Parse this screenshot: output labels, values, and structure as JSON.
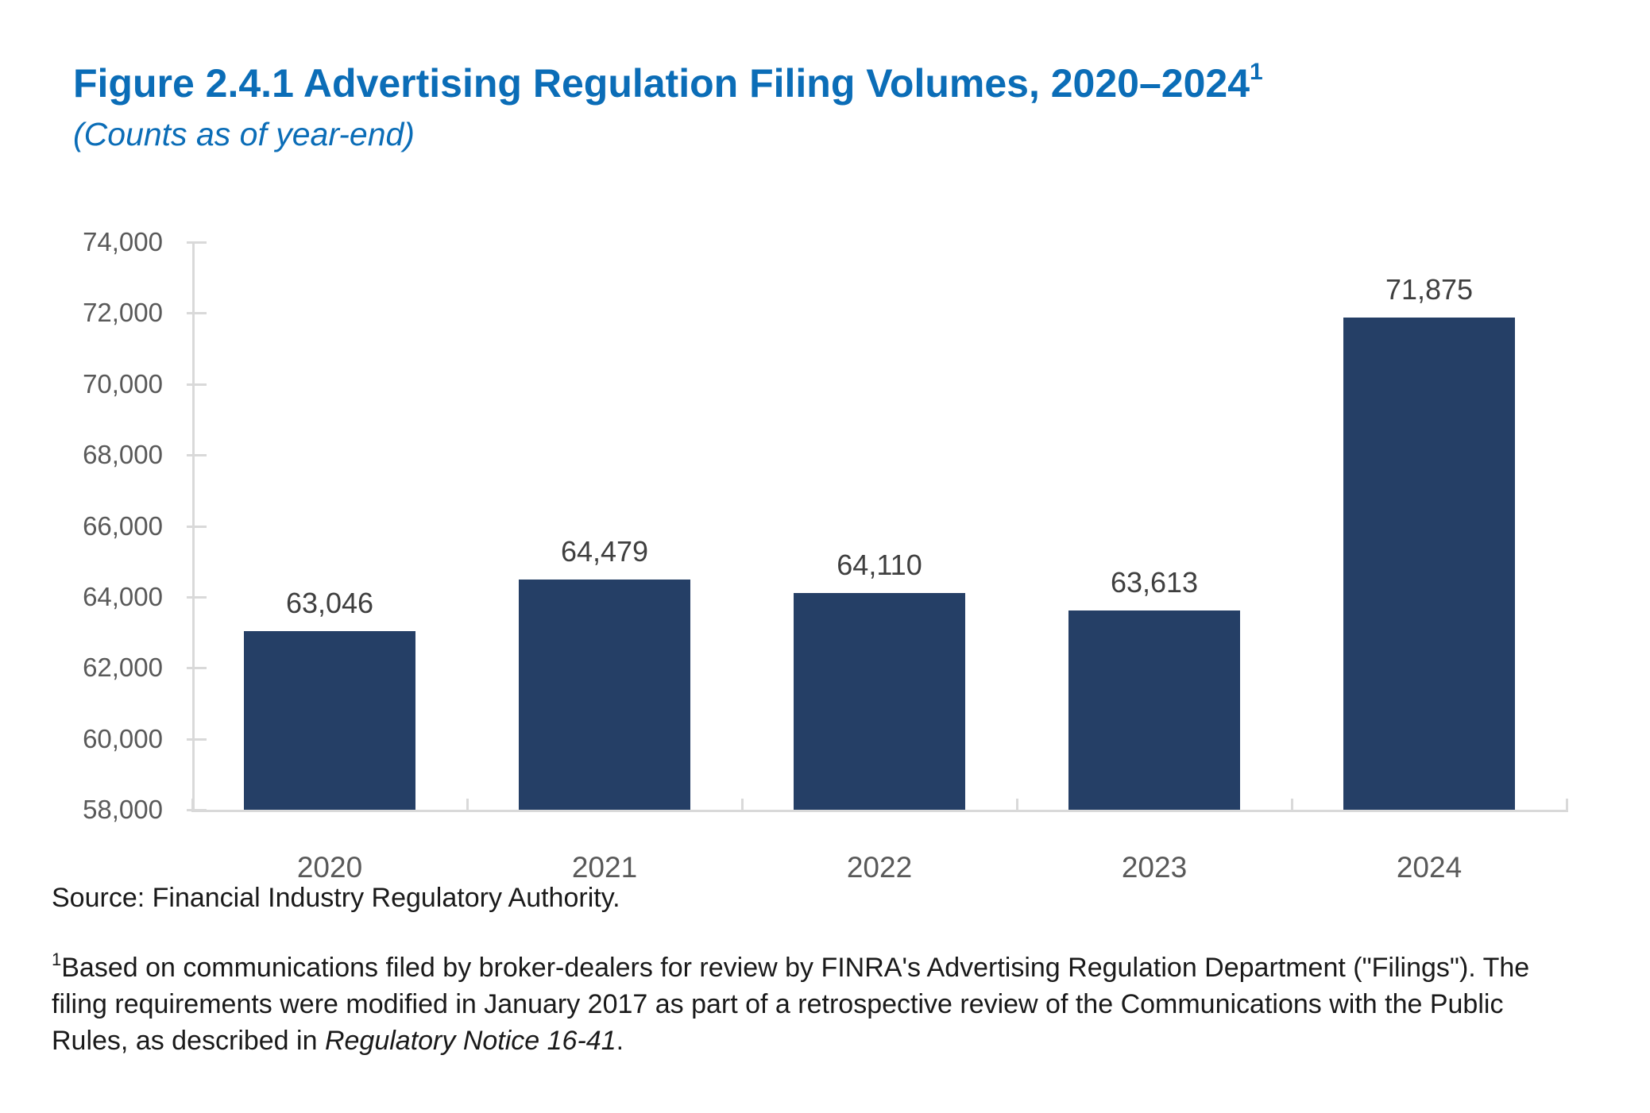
{
  "figure": {
    "title": "Figure 2.4.1 Advertising Regulation Filing Volumes, 2020–2024",
    "title_superscript": "1",
    "subtitle": "(Counts as of year-end)"
  },
  "colors": {
    "title_blue": "#0b6db7",
    "bar_navy": "#253f66",
    "axis_gray": "#d9d9d9",
    "tick_label_gray": "#595959",
    "data_label_gray": "#3f3f3f",
    "body_text": "#1a1a1a"
  },
  "chart_data": {
    "type": "bar",
    "title": "Figure 2.4.1 Advertising Regulation Filing Volumes, 2020–2024",
    "subtitle": "(Counts as of year-end)",
    "categories": [
      "2020",
      "2021",
      "2022",
      "2023",
      "2024"
    ],
    "values": [
      63046,
      64479,
      64110,
      63613,
      71875
    ],
    "value_labels": [
      "63,046",
      "64,479",
      "64,110",
      "63,613",
      "71,875"
    ],
    "ylim": [
      58000,
      74000
    ],
    "ytick_interval": 2000,
    "ytick_labels": [
      "58,000",
      "60,000",
      "62,000",
      "64,000",
      "66,000",
      "68,000",
      "70,000",
      "72,000",
      "74,000"
    ],
    "xlabel": "",
    "ylabel": "",
    "grid": false,
    "legend": "none",
    "bar_color": "#253f66"
  },
  "source_line": "Source: Financial Industry Regulatory Authority.",
  "footnote": {
    "superscript": "1",
    "line1": "Based on communications filed by broker-dealers for review by FINRA's Advertising Regulation Department (\"Filings\"). The",
    "line2": "filing requirements were modified in January 2017 as part of a retrospective review of the Communications with the Public",
    "line3_before_italic": "Rules, as described in ",
    "line3_italic": "Regulatory Notice 16-41",
    "line3_after": "."
  }
}
